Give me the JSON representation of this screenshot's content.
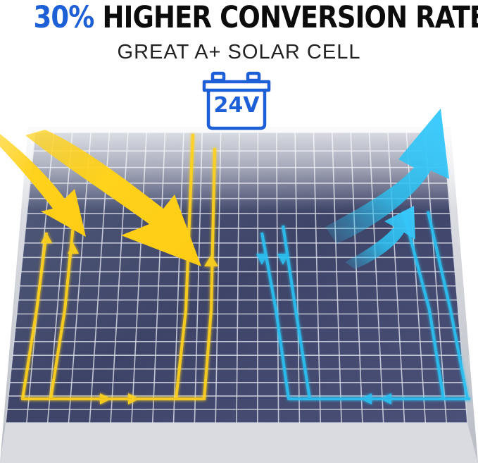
{
  "headline": {
    "highlight": "30%",
    "rest": "HIGHER CONVERSION RATE"
  },
  "subheadline": "GREAT A+ SOLAR CELL",
  "battery": {
    "label": "24V",
    "icon": "battery-icon"
  },
  "colors": {
    "accent_blue": "#1c5fd6",
    "input_yellow": "#ffd21c",
    "output_cyan": "#2bc0f0",
    "panel_cell": "#4a4f76",
    "panel_frame": "#c9ccd3"
  },
  "icons": [
    "sunlight-arrow-icon",
    "energy-output-arrow-icon",
    "battery-icon"
  ]
}
